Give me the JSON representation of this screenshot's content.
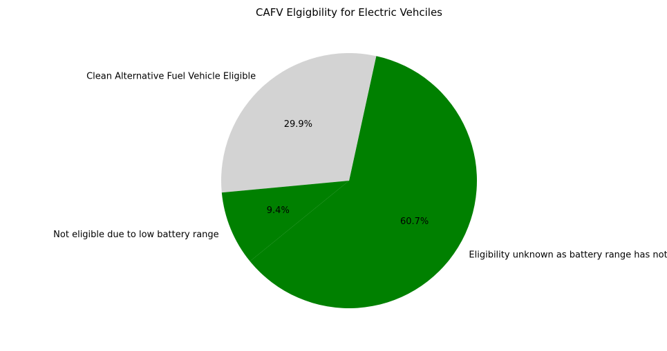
{
  "chart_data": {
    "type": "pie",
    "title": "CAFV Elgigbility for Electric Vehciles",
    "slices": [
      {
        "label": "Eligibility unknown as battery range has not been researched",
        "value": 60.7,
        "pct_label": "60.7%",
        "color": "#008000"
      },
      {
        "label": "Clean Alternative Fuel Vehicle Eligible",
        "value": 29.9,
        "pct_label": "29.9%",
        "color": "#d3d3d3"
      },
      {
        "label": "Not eligible due to low battery range",
        "value": 9.4,
        "pct_label": "9.4%",
        "color": "#008000"
      }
    ],
    "legend": "none"
  }
}
